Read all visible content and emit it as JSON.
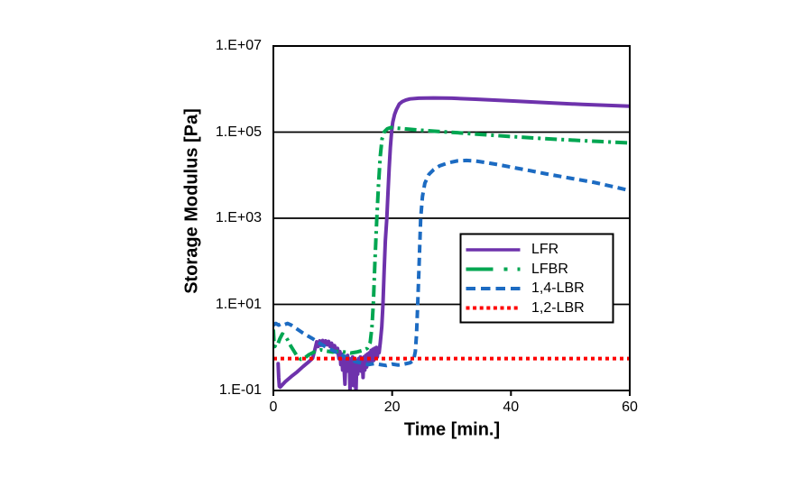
{
  "chart_data": {
    "type": "line",
    "title": "",
    "xlabel": "Time [min.]",
    "ylabel": "Storage Modulus [Pa]",
    "x_axis": {
      "min": 0,
      "max": 60,
      "tick_values": [
        0,
        20,
        40,
        60
      ],
      "tick_labels": [
        "0",
        "20",
        "40",
        "60"
      ]
    },
    "y_axis": {
      "scale": "log",
      "min": 0.1,
      "max": 10000000,
      "tick_values": [
        0.1,
        10,
        1000,
        100000,
        10000000
      ],
      "tick_labels": [
        "1.E-01",
        "1.E+01",
        "1.E+03",
        "1.E+05",
        "1.E+07"
      ]
    },
    "grid": "horizontal-only",
    "axis_color": "#000000",
    "background_color": "#ffffff",
    "legend": {
      "position": "inside-right",
      "border_color": "#000000",
      "fill_color": "#ffffff"
    },
    "series": [
      {
        "name": "LFR",
        "color": "#6E32AC",
        "line_style": "solid",
        "points": [
          [
            0.8,
            0.42
          ],
          [
            0.9,
            0.2
          ],
          [
            1.0,
            0.125
          ],
          [
            1.15,
            0.12
          ],
          [
            2.0,
            0.16
          ],
          [
            3.0,
            0.21
          ],
          [
            4.0,
            0.27
          ],
          [
            5.0,
            0.36
          ],
          [
            6.0,
            0.47
          ],
          [
            6.6,
            0.56
          ],
          [
            7.0,
            0.9
          ],
          [
            7.3,
            1.35
          ],
          [
            7.55,
            1.05
          ],
          [
            7.8,
            1.42
          ],
          [
            8.05,
            1.12
          ],
          [
            8.3,
            1.45
          ],
          [
            8.55,
            1.2
          ],
          [
            8.8,
            1.42
          ],
          [
            9.05,
            1.15
          ],
          [
            9.3,
            1.38
          ],
          [
            9.55,
            1.05
          ],
          [
            9.8,
            1.25
          ],
          [
            10.05,
            0.95
          ],
          [
            10.3,
            1.1
          ],
          [
            10.55,
            0.85
          ],
          [
            10.8,
            0.95
          ],
          [
            11.05,
            0.55
          ],
          [
            11.2,
            0.8
          ],
          [
            11.35,
            0.4
          ],
          [
            11.5,
            0.7
          ],
          [
            11.65,
            0.3
          ],
          [
            11.8,
            0.6
          ],
          [
            11.95,
            0.25
          ],
          [
            12.05,
            0.14
          ],
          [
            12.2,
            0.6
          ],
          [
            12.35,
            0.28
          ],
          [
            12.5,
            0.65
          ],
          [
            12.65,
            0.3
          ],
          [
            12.8,
            0.55
          ],
          [
            12.9,
            0.1
          ],
          [
            13.05,
            0.5
          ],
          [
            13.2,
            0.26
          ],
          [
            13.35,
            0.6
          ],
          [
            13.5,
            0.13
          ],
          [
            13.65,
            0.55
          ],
          [
            13.8,
            0.3
          ],
          [
            13.9,
            0.085
          ],
          [
            14.05,
            0.5
          ],
          [
            14.2,
            0.24
          ],
          [
            14.35,
            0.55
          ],
          [
            14.5,
            0.3
          ],
          [
            14.65,
            0.6
          ],
          [
            14.8,
            0.28
          ],
          [
            14.95,
            0.55
          ],
          [
            15.1,
            0.2
          ],
          [
            15.25,
            0.6
          ],
          [
            15.4,
            0.3
          ],
          [
            15.55,
            0.65
          ],
          [
            15.7,
            0.35
          ],
          [
            15.85,
            0.7
          ],
          [
            16.0,
            0.4
          ],
          [
            16.15,
            0.75
          ],
          [
            16.3,
            0.45
          ],
          [
            16.45,
            0.85
          ],
          [
            16.6,
            0.5
          ],
          [
            16.75,
            0.9
          ],
          [
            16.9,
            0.5
          ],
          [
            17.05,
            0.95
          ],
          [
            17.2,
            0.55
          ],
          [
            17.35,
            1.0
          ],
          [
            17.5,
            0.6
          ],
          [
            17.65,
            0.95
          ],
          [
            17.8,
            0.75
          ],
          [
            18.0,
            1.3
          ],
          [
            18.25,
            3
          ],
          [
            18.45,
            10
          ],
          [
            18.65,
            60
          ],
          [
            18.85,
            300
          ],
          [
            19.1,
            1000
          ],
          [
            19.3,
            4000
          ],
          [
            19.5,
            15000
          ],
          [
            19.7,
            45000
          ],
          [
            19.9,
            100000
          ],
          [
            20.1,
            170000
          ],
          [
            20.4,
            255000
          ],
          [
            20.7,
            330000
          ],
          [
            21.2,
            450000
          ],
          [
            21.7,
            510000
          ],
          [
            22.3,
            555000
          ],
          [
            23.0,
            590000
          ],
          [
            24.5,
            615000
          ],
          [
            27.0,
            622000
          ],
          [
            30.0,
            612000
          ],
          [
            34.0,
            580000
          ],
          [
            40.0,
            532000
          ],
          [
            46.0,
            482000
          ],
          [
            52.0,
            440000
          ],
          [
            60.0,
            400000
          ]
        ]
      },
      {
        "name": "LFBR",
        "color": "#00A651",
        "line_style": "dash-dot",
        "points": [
          [
            0,
            2.6
          ],
          [
            0.1,
            1.4
          ],
          [
            0.25,
            1.05
          ],
          [
            0.5,
            1.3
          ],
          [
            0.8,
            1.25
          ],
          [
            1.1,
            1.6
          ],
          [
            1.5,
            2.05
          ],
          [
            1.9,
            1.9
          ],
          [
            2.4,
            1.5
          ],
          [
            2.9,
            1.1
          ],
          [
            3.4,
            0.85
          ],
          [
            4.0,
            0.63
          ],
          [
            4.6,
            0.53
          ],
          [
            5.2,
            0.56
          ],
          [
            6.0,
            0.68
          ],
          [
            7.0,
            0.8
          ],
          [
            8.0,
            0.88
          ],
          [
            9.0,
            0.82
          ],
          [
            10.0,
            0.78
          ],
          [
            11.0,
            0.82
          ],
          [
            12.0,
            0.78
          ],
          [
            13.0,
            0.74
          ],
          [
            14.0,
            0.78
          ],
          [
            15.0,
            0.85
          ],
          [
            15.8,
            0.95
          ],
          [
            16.3,
            1.3
          ],
          [
            16.6,
            3
          ],
          [
            16.85,
            12
          ],
          [
            17.1,
            100
          ],
          [
            17.4,
            900
          ],
          [
            17.7,
            6000
          ],
          [
            18.0,
            28000
          ],
          [
            18.3,
            70000
          ],
          [
            18.7,
            103000
          ],
          [
            19.2,
            120000
          ],
          [
            19.8,
            128000
          ],
          [
            21,
            123000
          ],
          [
            23,
            116000
          ],
          [
            25,
            110000
          ],
          [
            28,
            103000
          ],
          [
            31,
            97000
          ],
          [
            35,
            88000
          ],
          [
            40,
            79000
          ],
          [
            45,
            71500
          ],
          [
            50,
            65500
          ],
          [
            55,
            60500
          ],
          [
            60,
            56000
          ]
        ]
      },
      {
        "name": "1,4-LBR",
        "color": "#1C6BC2",
        "line_style": "dashed",
        "points": [
          [
            0,
            3.3
          ],
          [
            0.4,
            3.6
          ],
          [
            0.9,
            3.3
          ],
          [
            1.4,
            3.6
          ],
          [
            1.9,
            3.4
          ],
          [
            2.4,
            3.6
          ],
          [
            3.0,
            3.3
          ],
          [
            3.6,
            2.9
          ],
          [
            4.3,
            2.5
          ],
          [
            5.0,
            2.15
          ],
          [
            5.8,
            1.85
          ],
          [
            6.6,
            1.6
          ],
          [
            7.4,
            1.35
          ],
          [
            8.2,
            1.15
          ],
          [
            9.0,
            1.0
          ],
          [
            10.0,
            0.85
          ],
          [
            11.0,
            0.72
          ],
          [
            12.0,
            0.62
          ],
          [
            13.0,
            0.52
          ],
          [
            14.0,
            0.46
          ],
          [
            15.0,
            0.43
          ],
          [
            16.0,
            0.4
          ],
          [
            17.0,
            0.42
          ],
          [
            18.0,
            0.4
          ],
          [
            19.0,
            0.38
          ],
          [
            20.0,
            0.41
          ],
          [
            21.0,
            0.39
          ],
          [
            22.0,
            0.41
          ],
          [
            23.0,
            0.44
          ],
          [
            23.6,
            0.5
          ],
          [
            23.9,
            0.8
          ],
          [
            24.1,
            2
          ],
          [
            24.3,
            10
          ],
          [
            24.5,
            60
          ],
          [
            24.8,
            1000
          ],
          [
            25.1,
            3200
          ],
          [
            25.5,
            6500
          ],
          [
            26.2,
            10500
          ],
          [
            27,
            13500
          ],
          [
            28,
            16500
          ],
          [
            29.5,
            19500
          ],
          [
            31,
            21500
          ],
          [
            32.5,
            22000
          ],
          [
            34,
            21400
          ],
          [
            36,
            19400
          ],
          [
            38,
            17400
          ],
          [
            40,
            15400
          ],
          [
            43,
            12900
          ],
          [
            46,
            10700
          ],
          [
            50,
            8500
          ],
          [
            54,
            6800
          ],
          [
            57,
            5500
          ],
          [
            60,
            4400
          ]
        ]
      },
      {
        "name": "1,2-LBR",
        "color": "#FF0000",
        "line_style": "dotted",
        "points": [
          [
            0,
            0.55
          ],
          [
            60,
            0.55
          ]
        ]
      }
    ]
  }
}
